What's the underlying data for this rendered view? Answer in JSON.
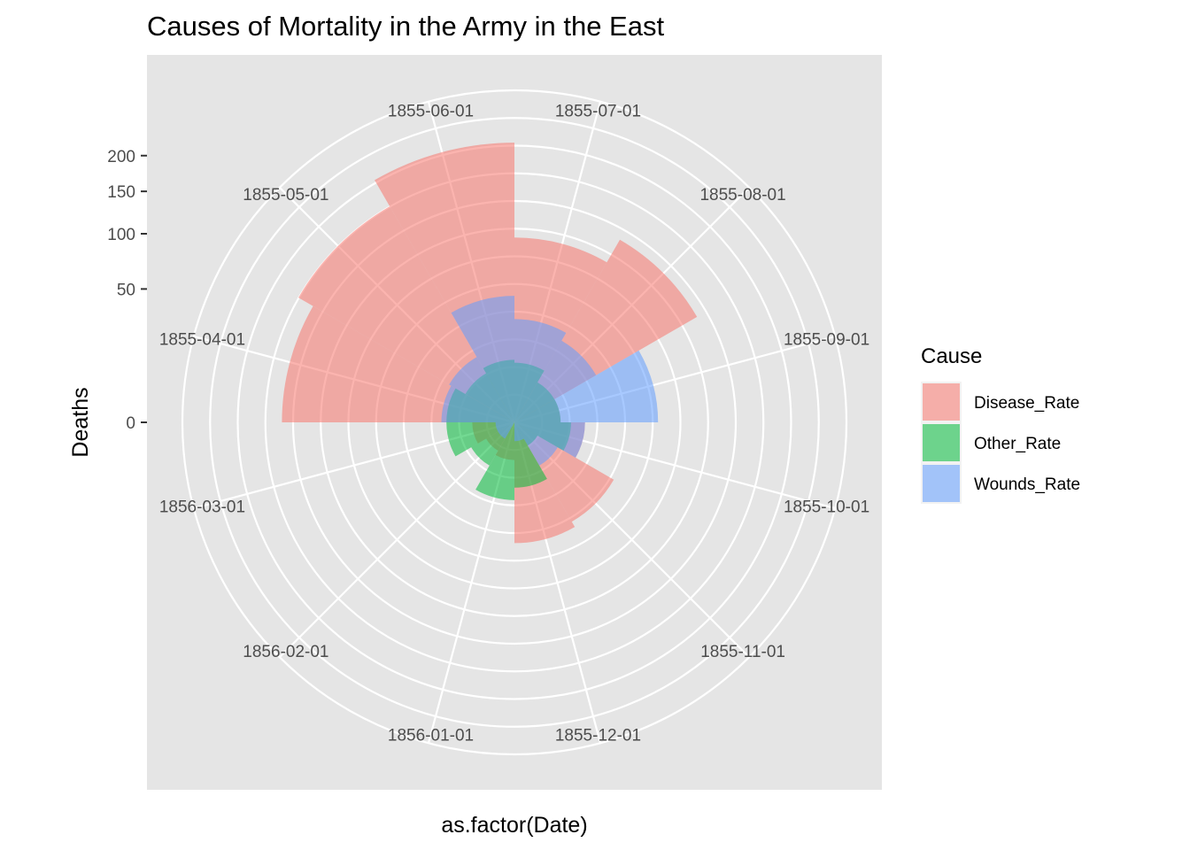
{
  "chart_data": {
    "type": "polar-bar",
    "title": "Causes of Mortality in the Army in the East",
    "xlabel": "as.factor(Date)",
    "ylabel": "Deaths",
    "radial_scale": "sqrt",
    "y_ticks": [
      0,
      50,
      100,
      150,
      200
    ],
    "y_tick_labels": [
      "0",
      "50",
      "100",
      "150",
      "200"
    ],
    "categories": [
      "1855-07-01",
      "1855-08-01",
      "1855-09-01",
      "1855-10-01",
      "1855-11-01",
      "1855-12-01",
      "1856-01-01",
      "1856-02-01",
      "1856-03-01",
      "1855-04-01",
      "1855-05-01",
      "1855-06-01"
    ],
    "series": [
      {
        "name": "Disease_Rate",
        "color": "#F8766D",
        "values": [
          96,
          125,
          6,
          14,
          37,
          41,
          4,
          3,
          5,
          152,
          175,
          220
        ]
      },
      {
        "name": "Other_Rate",
        "color": "#00BA38",
        "values": [
          10,
          6,
          6,
          9,
          2,
          12,
          17,
          7,
          13,
          13,
          9,
          11
        ]
      },
      {
        "name": "Wounds_Rate",
        "color": "#619CFF",
        "values": [
          30,
          25,
          58,
          14,
          7,
          1,
          0,
          1,
          1,
          15,
          16,
          45
        ]
      }
    ],
    "legend_title": "Cause",
    "legend_position": "right",
    "grid": true,
    "start_angle_category": "1855-07-01"
  }
}
